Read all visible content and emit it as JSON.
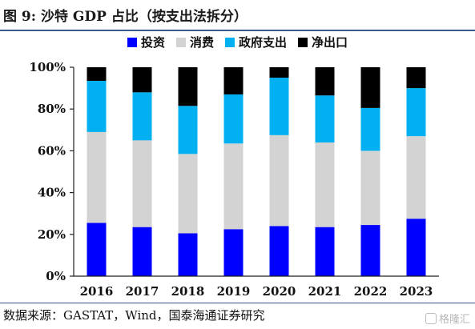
{
  "figure_title": "图 9:  沙特 GDP 占比（按支出法拆分）",
  "source_note": "数据来源：GASTAT，Wind，国泰海通证券研究",
  "watermark": "格隆汇",
  "chart_data": {
    "type": "bar",
    "stacked": true,
    "categories": [
      "2016",
      "2017",
      "2018",
      "2019",
      "2020",
      "2021",
      "2022",
      "2023"
    ],
    "series": [
      {
        "name": "投资",
        "color": "#0000ff",
        "values": [
          25.5,
          23.5,
          20.5,
          22.5,
          24,
          23.5,
          24.5,
          27.5
        ]
      },
      {
        "name": "消费",
        "color": "#d3d3d3",
        "values": [
          43.5,
          41.5,
          38,
          41,
          43.5,
          40.5,
          35.5,
          39.5
        ]
      },
      {
        "name": "政府支出",
        "color": "#00b0f0",
        "values": [
          24.5,
          23,
          23,
          23.5,
          27.5,
          22.5,
          20.5,
          23
        ]
      },
      {
        "name": "净出口",
        "color": "#000000",
        "values": [
          6.5,
          12,
          18.5,
          13,
          5,
          13.5,
          19.5,
          10
        ]
      }
    ],
    "yticks": [
      "0%",
      "20%",
      "40%",
      "60%",
      "80%",
      "100%"
    ],
    "ylim": [
      0,
      100
    ],
    "legend_position": "top-center",
    "grid": false
  }
}
